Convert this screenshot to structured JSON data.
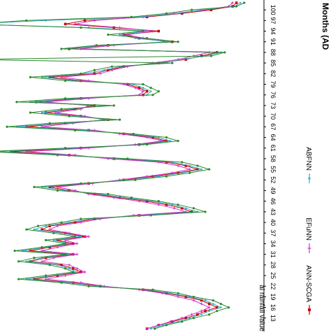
{
  "chart_data": {
    "type": "line",
    "orientation": "rotated-90",
    "xlabel": "Months (AD",
    "ylabel": "al rainfall value",
    "tick_labels": [
      "100",
      "97",
      "94",
      "91",
      "88",
      "85",
      "82",
      "79",
      "76",
      "73",
      "70",
      "67",
      "64",
      "61",
      "58",
      "55",
      "52",
      "49",
      "46",
      "43",
      "40",
      "37",
      "34",
      "31",
      "28",
      "25",
      "22",
      "19",
      "16",
      "13"
    ],
    "xlim": [
      10,
      102
    ],
    "ylim": [
      0,
      130
    ],
    "grid": false,
    "legend_position": "right",
    "series": [
      {
        "name": "ANN-SCGA",
        "color": "#cc0000",
        "marker": "square",
        "x": [
          102,
          101,
          100,
          99,
          98,
          97,
          96,
          95,
          94,
          93,
          92,
          91,
          90,
          89,
          88,
          87,
          86,
          85,
          84,
          83,
          82,
          81,
          80,
          79,
          78,
          77,
          76,
          75,
          74,
          73,
          72,
          71,
          70,
          69,
          68,
          67,
          66,
          65,
          64,
          63,
          62,
          61,
          60,
          59,
          58,
          57,
          56,
          55,
          54,
          53,
          52,
          51,
          50,
          49,
          48,
          47,
          46,
          45,
          44,
          43,
          42,
          41,
          40,
          39,
          38,
          37,
          36,
          35,
          34,
          33,
          32,
          31,
          30,
          29,
          28,
          27,
          26,
          25,
          24,
          23,
          22,
          21,
          20,
          19,
          18,
          17,
          16,
          15,
          14,
          13,
          12,
          11,
          10
        ],
        "values": [
          12,
          14,
          25,
          40,
          58,
          90,
          100,
          75,
          52,
          70,
          62,
          45,
          78,
          98,
          22,
          30,
          38,
          52,
          70,
          78,
          85,
          108,
          92,
          68,
          62,
          58,
          60,
          92,
          115,
          85,
          95,
          110,
          92,
          78,
          100,
          120,
          88,
          70,
          55,
          48,
          62,
          92,
          128,
          98,
          75,
          48,
          38,
          32,
          42,
          55,
          70,
          88,
          108,
          98,
          85,
          72,
          58,
          48,
          40,
          35,
          62,
          85,
          95,
          108,
          112,
          100,
          90,
          104,
          96,
          108,
          118,
          96,
          110,
          118,
          102,
          96,
          92,
          104,
          116,
          96,
          82,
          60,
          48,
          38,
          30,
          26,
          22,
          28,
          32,
          38,
          45,
          52,
          58
        ]
      },
      {
        "name": "EFuNN",
        "color": "#cc33cc",
        "marker": "plus",
        "x": [
          102,
          101,
          100,
          99,
          98,
          97,
          96,
          95,
          94,
          93,
          92,
          91,
          90,
          89,
          88,
          87,
          86,
          85,
          84,
          83,
          82,
          81,
          80,
          79,
          78,
          77,
          76,
          75,
          74,
          73,
          72,
          71,
          70,
          69,
          68,
          67,
          66,
          65,
          64,
          63,
          62,
          61,
          60,
          59,
          58,
          57,
          56,
          55,
          54,
          53,
          52,
          51,
          50,
          49,
          48,
          47,
          46,
          45,
          44,
          43,
          42,
          41,
          40,
          39,
          38,
          37,
          36,
          35,
          34,
          33,
          32,
          31,
          30,
          29,
          28,
          27,
          26,
          25,
          24,
          23,
          22,
          21,
          20,
          19,
          18,
          17,
          16,
          15,
          14,
          13,
          12,
          11,
          10
        ],
        "values": [
          14,
          16,
          28,
          44,
          60,
          85,
          95,
          72,
          55,
          68,
          60,
          48,
          75,
          92,
          26,
          34,
          42,
          55,
          68,
          76,
          82,
          102,
          88,
          70,
          64,
          60,
          62,
          88,
          110,
          88,
          92,
          105,
          90,
          80,
          96,
          112,
          85,
          72,
          58,
          50,
          64,
          88,
          120,
          95,
          78,
          52,
          42,
          36,
          45,
          58,
          72,
          86,
          104,
          95,
          88,
          75,
          62,
          52,
          44,
          38,
          65,
          82,
          92,
          104,
          108,
          98,
          88,
          100,
          94,
          104,
          112,
          94,
          106,
          112,
          98,
          94,
          90,
          100,
          110,
          92,
          80,
          62,
          50,
          42,
          34,
          30,
          26,
          30,
          35,
          40,
          46,
          52,
          58
        ]
      },
      {
        "name": "ABFNN",
        "color": "#33aacc",
        "marker": "circle",
        "x": [
          102,
          101,
          100,
          99,
          98,
          97,
          96,
          95,
          94,
          93,
          92,
          91,
          90,
          89,
          88,
          87,
          86,
          85,
          84,
          83,
          82,
          81,
          80,
          79,
          78,
          77,
          76,
          75,
          74,
          73,
          72,
          71,
          70,
          69,
          68,
          67,
          66,
          65,
          64,
          63,
          62,
          61,
          60,
          59,
          58,
          57,
          56,
          55,
          54,
          53,
          52,
          51,
          50,
          49,
          48,
          47,
          46,
          45,
          44,
          43,
          42,
          41,
          40,
          39,
          38,
          37,
          36,
          35,
          34,
          33,
          32,
          31,
          30,
          29,
          28,
          27,
          26,
          25,
          24,
          23,
          22,
          21,
          20,
          19,
          18,
          17,
          16,
          15,
          14,
          13,
          12,
          11,
          10
        ],
        "values": [
          10,
          13,
          30,
          42,
          62,
          110,
          150,
          88,
          58,
          72,
          64,
          46,
          80,
          100,
          20,
          28,
          40,
          50,
          72,
          80,
          90,
          112,
          95,
          65,
          60,
          56,
          58,
          95,
          118,
          80,
          98,
          112,
          94,
          76,
          102,
          125,
          90,
          68,
          52,
          46,
          60,
          95,
          135,
          100,
          72,
          45,
          36,
          30,
          40,
          52,
          68,
          90,
          112,
          100,
          82,
          70,
          55,
          45,
          38,
          32,
          60,
          88,
          98,
          110,
          116,
          102,
          92,
          106,
          98,
          110,
          122,
          98,
          112,
          120,
          104,
          98,
          94,
          106,
          120,
          98,
          84,
          58,
          46,
          36,
          28,
          24,
          20,
          26,
          30,
          36,
          42,
          50,
          56
        ]
      },
      {
        "name": "",
        "color": "#2a8a2a",
        "marker": "dot",
        "x": [
          102,
          101,
          100,
          99,
          98,
          97,
          96,
          95,
          94,
          93,
          92,
          91,
          90,
          89,
          88,
          87,
          86,
          85,
          84,
          83,
          82,
          81,
          80,
          79,
          78,
          77,
          76,
          75,
          74,
          73,
          72,
          71,
          70,
          69,
          68,
          67,
          66,
          65,
          64,
          63,
          62,
          61,
          60,
          59,
          58,
          57,
          56,
          55,
          54,
          53,
          52,
          51,
          50,
          49,
          48,
          47,
          46,
          45,
          44,
          43,
          42,
          41,
          40,
          39,
          38,
          37,
          36,
          35,
          34,
          33,
          32,
          31,
          30,
          29,
          28,
          27,
          26,
          25,
          24,
          23,
          22,
          21,
          20,
          19,
          18,
          17,
          16,
          15,
          14,
          13,
          12,
          11,
          10
        ],
        "values": [
          8,
          12,
          35,
          48,
          66,
          120,
          148,
          92,
          60,
          78,
          58,
          42,
          84,
          102,
          18,
          25,
          150,
          45,
          76,
          85,
          92,
          118,
          100,
          60,
          56,
          52,
          55,
          100,
          125,
          75,
          102,
          118,
          98,
          72,
          108,
          130,
          95,
          65,
          48,
          42,
          58,
          100,
          140,
          104,
          68,
          40,
          32,
          26,
          36,
          48,
          64,
          92,
          116,
          104,
          78,
          66,
          52,
          42,
          34,
          28,
          56,
          92,
          102,
          114,
          120,
          106,
          95,
          110,
          100,
          112,
          126,
          100,
          116,
          124,
          108,
          100,
          96,
          110,
          124,
          102,
          88,
          55,
          42,
          34,
          24,
          20,
          16,
          22,
          26,
          34,
          40,
          48,
          54
        ]
      }
    ]
  }
}
